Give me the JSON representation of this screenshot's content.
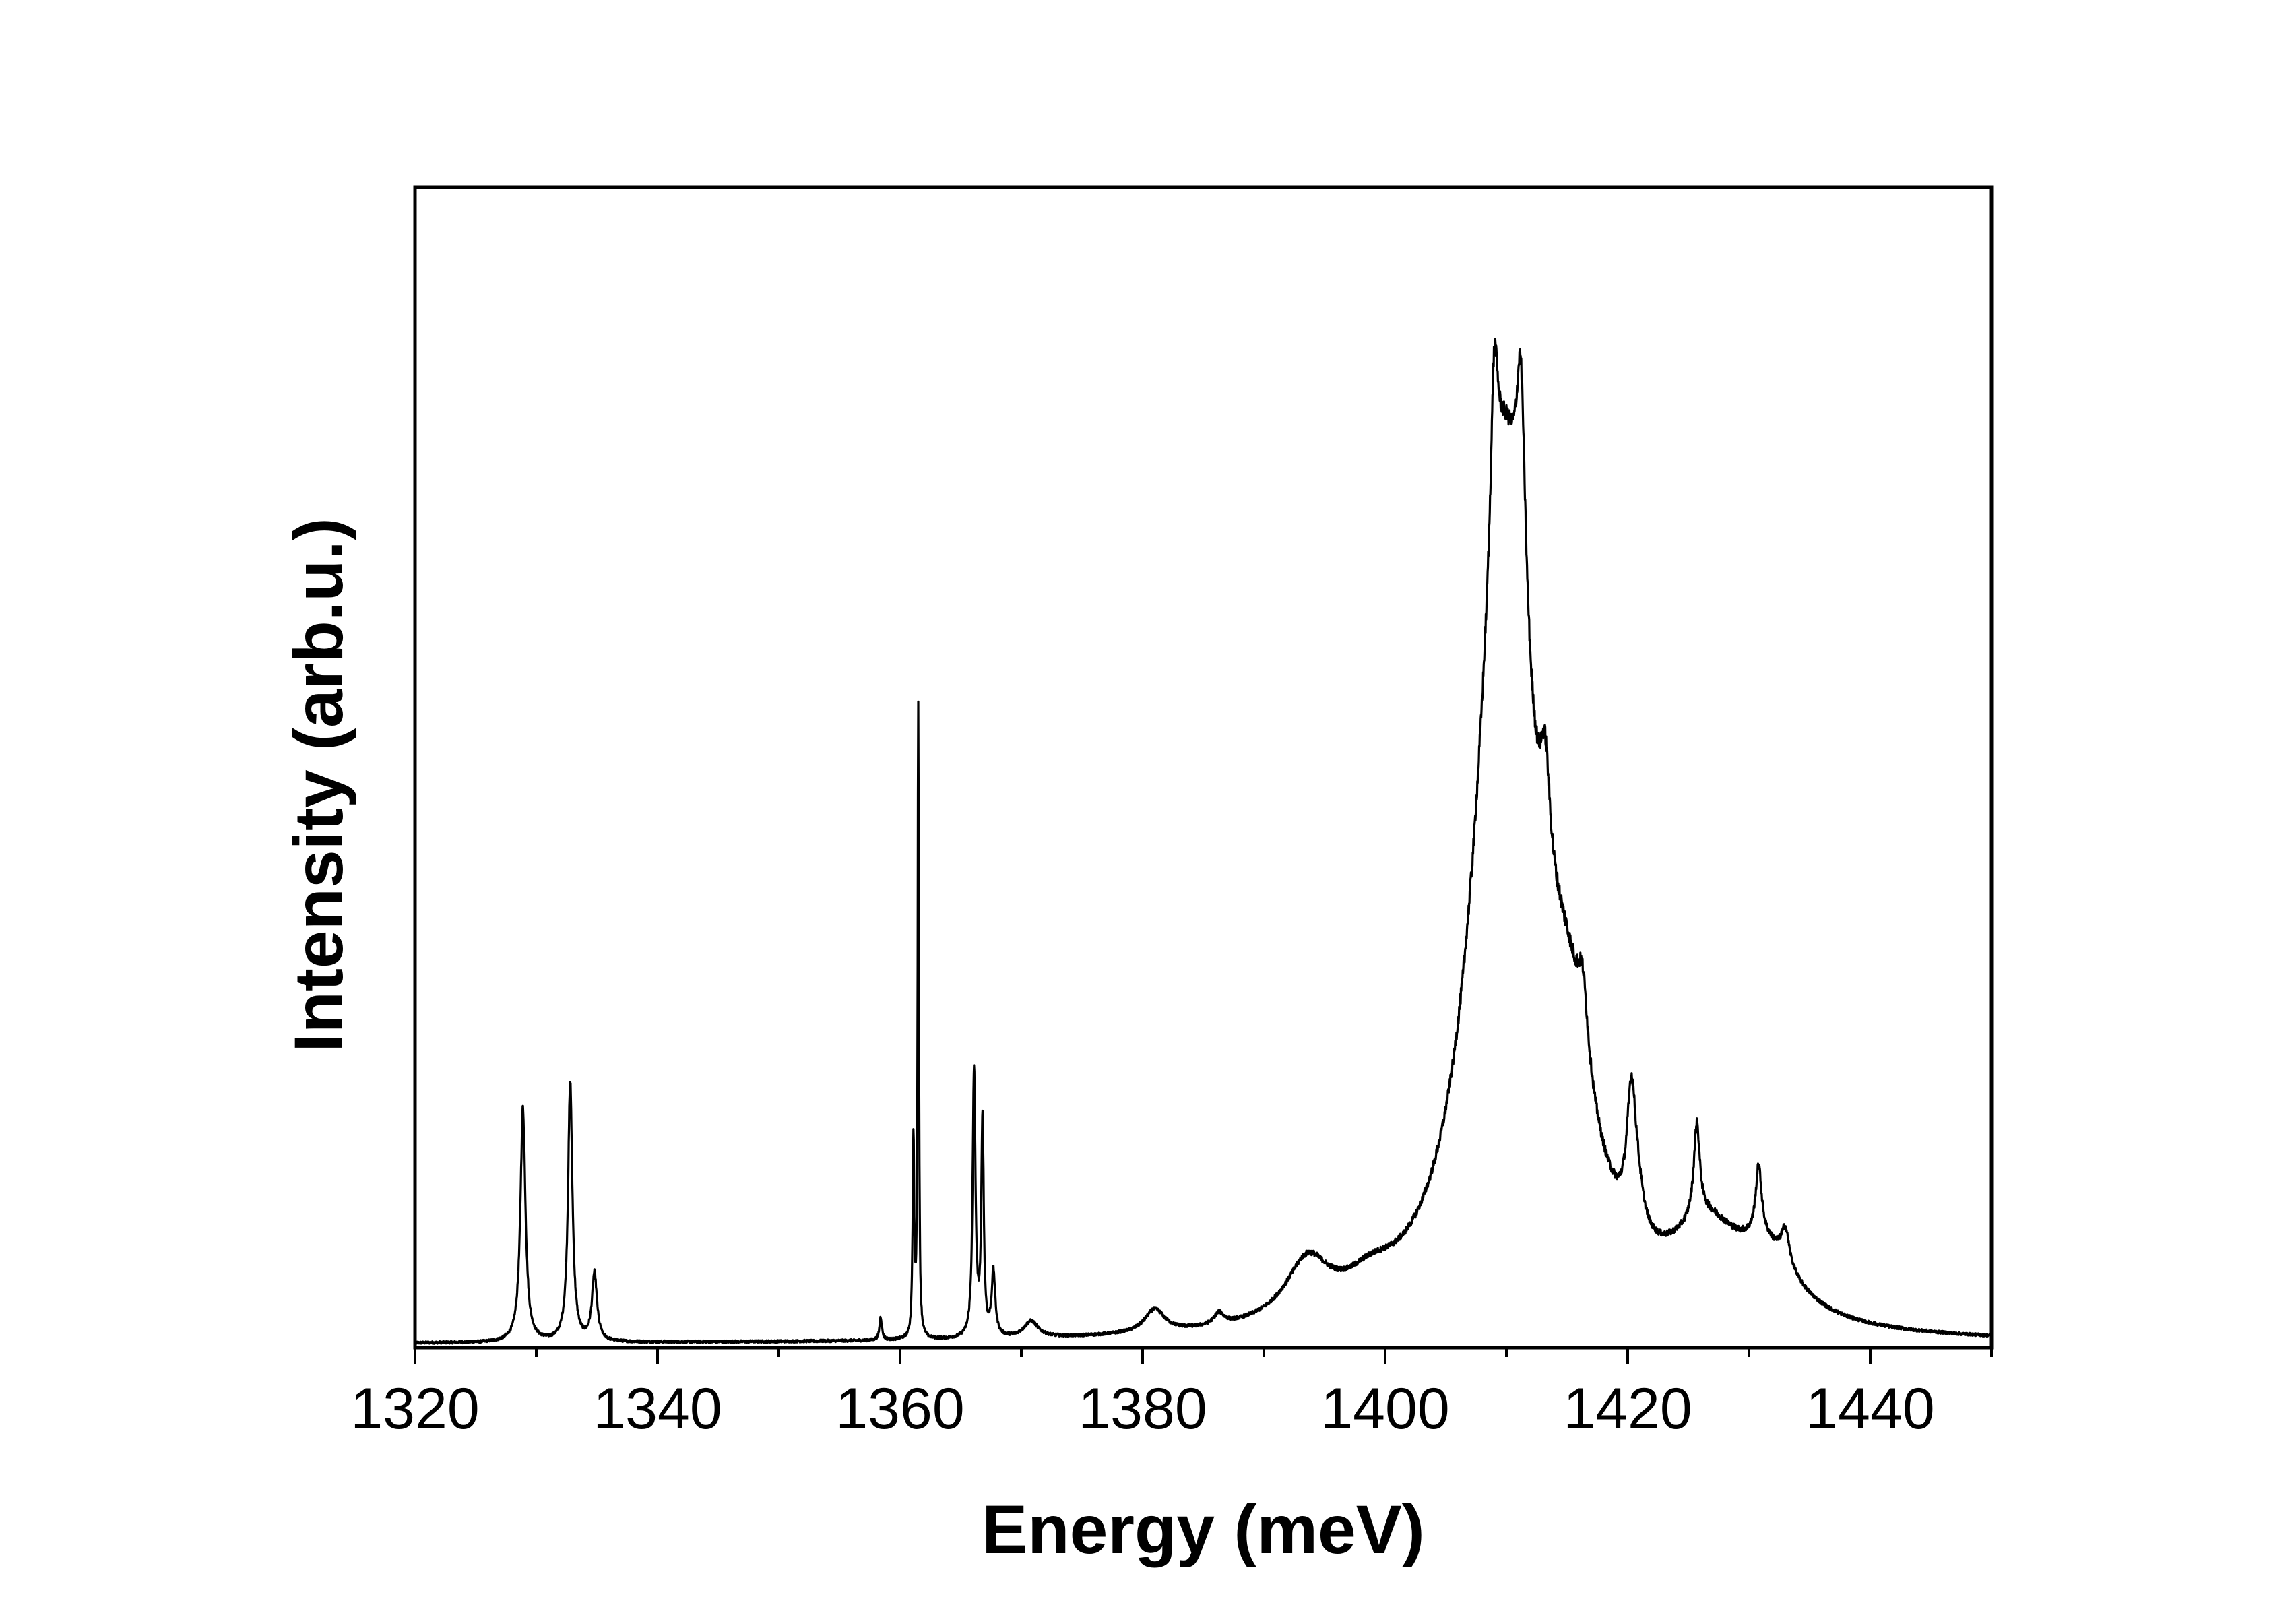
{
  "chart_data": {
    "type": "line",
    "title": "",
    "xlabel": "Energy (meV)",
    "ylabel": "Intensity (arb.u.)",
    "xlim": [
      1320,
      1450
    ],
    "ylim": [
      0,
      1.0
    ],
    "x_ticks": [
      1320,
      1340,
      1360,
      1380,
      1400,
      1420,
      1440
    ],
    "x_tick_labels": [
      "1320",
      "1340",
      "1360",
      "1380",
      "1400",
      "1420",
      "1440"
    ],
    "y_tick_labels_visible": false,
    "grid": false,
    "legend": "none",
    "line_color": "#000000",
    "series": [
      {
        "baseline": 0.003,
        "peaks": [
          {
            "x": 1328.9,
            "height": 0.202,
            "width": 0.25
          },
          {
            "x": 1332.8,
            "height": 0.222,
            "width": 0.22
          },
          {
            "x": 1334.8,
            "height": 0.058,
            "width": 0.25
          },
          {
            "x": 1358.4,
            "height": 0.02,
            "width": 0.12
          },
          {
            "x": 1361.1,
            "height": 0.17,
            "width": 0.08
          },
          {
            "x": 1361.5,
            "height": 0.54,
            "width": 0.06
          },
          {
            "x": 1366.1,
            "height": 0.23,
            "width": 0.14
          },
          {
            "x": 1366.8,
            "height": 0.185,
            "width": 0.12
          },
          {
            "x": 1367.7,
            "height": 0.055,
            "width": 0.18
          },
          {
            "x": 1370.8,
            "height": 0.014,
            "width": 0.7
          },
          {
            "x": 1381.0,
            "height": 0.02,
            "width": 1.0
          },
          {
            "x": 1386.3,
            "height": 0.01,
            "width": 0.5
          },
          {
            "x": 1393.6,
            "height": 0.05,
            "width": 2.2
          },
          {
            "x": 1398.8,
            "height": 0.02,
            "width": 2.5
          },
          {
            "x": 1409.8,
            "height": 0.72,
            "width": 2.8
          },
          {
            "x": 1409.0,
            "height": 0.15,
            "width": 0.35
          },
          {
            "x": 1411.2,
            "height": 0.2,
            "width": 0.45
          },
          {
            "x": 1413.2,
            "height": 0.1,
            "width": 0.5
          },
          {
            "x": 1415.0,
            "height": 0.17,
            "width": 2.6
          },
          {
            "x": 1416.3,
            "height": 0.06,
            "width": 0.5
          },
          {
            "x": 1420.3,
            "height": 0.11,
            "width": 0.45
          },
          {
            "x": 1420.8,
            "height": 0.03,
            "width": 0.6
          },
          {
            "x": 1426.5,
            "height": 0.07,
            "width": 3.5
          },
          {
            "x": 1431.5,
            "height": 0.05,
            "width": 3.0
          },
          {
            "x": 1425.7,
            "height": 0.08,
            "width": 0.3
          },
          {
            "x": 1430.8,
            "height": 0.06,
            "width": 0.3
          },
          {
            "x": 1433.0,
            "height": 0.03,
            "width": 0.4
          }
        ],
        "noise_amplitude": 0.008
      }
    ]
  }
}
